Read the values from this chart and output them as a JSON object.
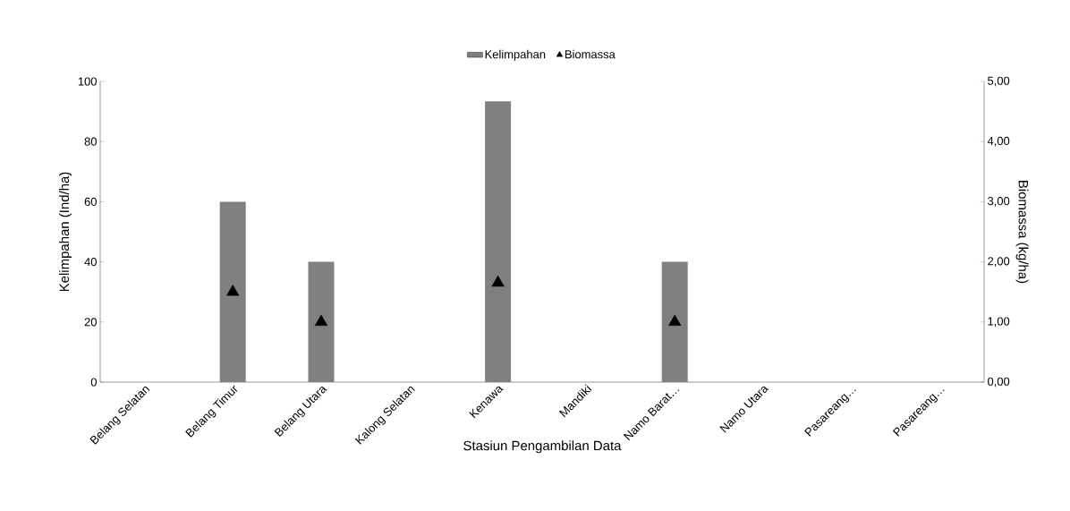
{
  "chart_data": {
    "type": "bar",
    "xlabel": "Stasiun Pengambilan Data",
    "ylabel": "Kelimpahan (Ind/ha)",
    "y2label": "Biomassa (kg/ha)",
    "categories": [
      "Belang Selatan",
      "Belang Timur",
      "Belang Utara",
      "Kalong Selatan",
      "Kenawa",
      "Mandiki",
      "Namo Barat…",
      "Namo Utara",
      "Pasareang…",
      "Pasareang…"
    ],
    "series": [
      {
        "name": "Kelimpahan",
        "color": "#808080",
        "values": [
          0,
          60,
          40,
          0,
          93.4,
          0,
          40,
          0,
          0,
          0
        ]
      },
      {
        "name": "Biomassa",
        "type": "scatter",
        "axis": "y2",
        "color": "#000000",
        "marker": "triangle",
        "values": [
          null,
          1.5,
          1.0,
          null,
          1.65,
          null,
          1.0,
          null,
          null,
          null
        ]
      }
    ],
    "ylim": [
      0,
      100
    ],
    "yticks": [
      0,
      20,
      40,
      60,
      80,
      100
    ],
    "y2lim": [
      0,
      5
    ],
    "y2ticks": [
      {
        "value": 0,
        "label": "0,00"
      },
      {
        "value": 1,
        "label": "1,00"
      },
      {
        "value": 2,
        "label": "2,00"
      },
      {
        "value": 3,
        "label": "3,00"
      },
      {
        "value": 4,
        "label": "4,00"
      },
      {
        "value": 5,
        "label": "5,00"
      }
    ],
    "legend": "top",
    "grid": false
  }
}
